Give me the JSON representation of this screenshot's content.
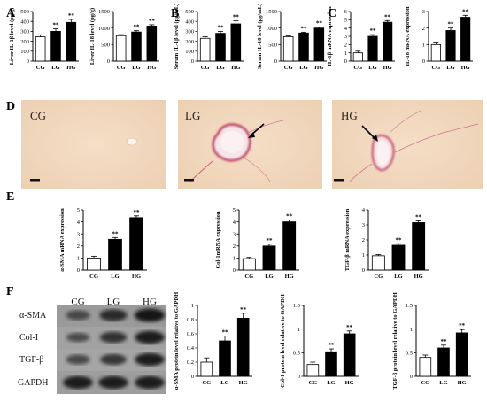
{
  "panel_letters": [
    "A",
    "B",
    "C",
    "D",
    "E",
    "F"
  ],
  "micrographs": {
    "labels": [
      "CG",
      "LG",
      "HG"
    ]
  },
  "western_blot": {
    "group_headers": [
      "CG",
      "LG",
      "HG"
    ],
    "band_labels": [
      "α-SMA",
      "Col-I",
      "TGF-β",
      "GAPDH"
    ],
    "band_intensity": [
      [
        0.45,
        0.7,
        0.9
      ],
      [
        0.4,
        0.65,
        0.85
      ],
      [
        0.45,
        0.6,
        0.85
      ],
      [
        0.85,
        0.85,
        0.85
      ]
    ]
  },
  "chart_data": [
    {
      "type": "bar",
      "categories": [
        "CG",
        "LG",
        "HG"
      ],
      "values": [
        245,
        300,
        390
      ],
      "errors": [
        20,
        25,
        30
      ],
      "significance": [
        "",
        "**",
        "**"
      ],
      "ylabel": "Liver IL-1β level (pg/g)",
      "ylim": [
        0,
        500
      ],
      "yticks": [
        0,
        100,
        200,
        300,
        400,
        500
      ]
    },
    {
      "type": "bar",
      "categories": [
        "CG",
        "LG",
        "HG"
      ],
      "values": [
        770,
        880,
        1060
      ],
      "errors": [
        30,
        40,
        40
      ],
      "significance": [
        "",
        "**",
        "**"
      ],
      "ylabel": "Liver IL-18 level (pg/g)",
      "ylim": [
        0,
        1500
      ],
      "yticks": [
        0,
        500,
        1000,
        1500
      ]
    },
    {
      "type": "bar",
      "categories": [
        "CG",
        "LG",
        "HG"
      ],
      "values": [
        230,
        280,
        375
      ],
      "errors": [
        15,
        20,
        30
      ],
      "significance": [
        "",
        "**",
        "**"
      ],
      "ylabel": "Serum IL-1β level (pg/mL)",
      "ylim": [
        0,
        500
      ],
      "yticks": [
        0,
        100,
        200,
        300,
        400,
        500
      ]
    },
    {
      "type": "bar",
      "categories": [
        "CG",
        "LG",
        "HG"
      ],
      "values": [
        740,
        850,
        1000
      ],
      "errors": [
        20,
        25,
        30
      ],
      "significance": [
        "",
        "**",
        "**"
      ],
      "ylabel": "Serum IL-18 level (pg/mL)",
      "ylim": [
        0,
        1500
      ],
      "yticks": [
        0,
        500,
        1000,
        1500
      ]
    },
    {
      "type": "bar",
      "categories": [
        "CG",
        "LG",
        "HG"
      ],
      "values": [
        1.0,
        3.0,
        4.7
      ],
      "errors": [
        0.2,
        0.2,
        0.2
      ],
      "significance": [
        "",
        "**",
        "**"
      ],
      "ylabel": "IL-1β mRNA expression",
      "ylim": [
        0,
        6
      ],
      "yticks": [
        0,
        1,
        2,
        3,
        4,
        5,
        6
      ]
    },
    {
      "type": "bar",
      "categories": [
        "CG",
        "LG",
        "HG"
      ],
      "values": [
        1.0,
        1.85,
        2.65
      ],
      "errors": [
        0.15,
        0.15,
        0.12
      ],
      "significance": [
        "",
        "**",
        "**"
      ],
      "ylabel": "IL-18 mRNA expression",
      "ylim": [
        0,
        3
      ],
      "yticks": [
        0,
        1,
        2,
        3
      ]
    },
    {
      "type": "bar",
      "categories": [
        "CG",
        "LG",
        "HG"
      ],
      "values": [
        1.0,
        2.55,
        4.35
      ],
      "errors": [
        0.15,
        0.15,
        0.15
      ],
      "significance": [
        "",
        "**",
        "**"
      ],
      "ylabel": "α-SMA mRNA expression",
      "ylim": [
        0,
        5
      ],
      "yticks": [
        0,
        1,
        2,
        3,
        4,
        5
      ]
    },
    {
      "type": "bar",
      "categories": [
        "CG",
        "LG",
        "HG"
      ],
      "values": [
        0.95,
        2.0,
        4.0
      ],
      "errors": [
        0.1,
        0.15,
        0.15
      ],
      "significance": [
        "",
        "**",
        "**"
      ],
      "ylabel": "Col-1mRNA expression",
      "ylim": [
        0,
        5
      ],
      "yticks": [
        0,
        1,
        2,
        3,
        4,
        5
      ]
    },
    {
      "type": "bar",
      "categories": [
        "CG",
        "LG",
        "HG"
      ],
      "values": [
        0.95,
        1.65,
        3.15
      ],
      "errors": [
        0.08,
        0.1,
        0.12
      ],
      "significance": [
        "",
        "**",
        "**"
      ],
      "ylabel": "TGF-β mRNA expression",
      "ylim": [
        0,
        4
      ],
      "yticks": [
        0,
        1,
        2,
        3,
        4
      ]
    },
    {
      "type": "bar",
      "categories": [
        "CG",
        "LG",
        "HG"
      ],
      "values": [
        0.2,
        0.5,
        0.82
      ],
      "errors": [
        0.06,
        0.07,
        0.07
      ],
      "significance": [
        "",
        "**",
        "**"
      ],
      "ylabel": "α-SMA protein level relative to GAPDH",
      "ylim": [
        0,
        1.0
      ],
      "yticks": [
        0.0,
        0.2,
        0.4,
        0.6,
        0.8,
        1.0
      ]
    },
    {
      "type": "bar",
      "categories": [
        "CG",
        "LG",
        "HG"
      ],
      "values": [
        0.25,
        0.52,
        0.9
      ],
      "errors": [
        0.05,
        0.06,
        0.06
      ],
      "significance": [
        "",
        "**",
        "**"
      ],
      "ylabel": "Col-1 protein level relative to GAPDH",
      "ylim": [
        0,
        1.5
      ],
      "yticks": [
        0.0,
        0.5,
        1.0,
        1.5
      ]
    },
    {
      "type": "bar",
      "categories": [
        "CG",
        "LG",
        "HG"
      ],
      "values": [
        0.4,
        0.6,
        0.92
      ],
      "errors": [
        0.05,
        0.06,
        0.07
      ],
      "significance": [
        "",
        "**",
        "**"
      ],
      "ylabel": "TGF-β protein level relative to GAPDH",
      "ylim": [
        0,
        1.5
      ],
      "yticks": [
        0.0,
        0.5,
        1.0,
        1.5
      ]
    }
  ]
}
